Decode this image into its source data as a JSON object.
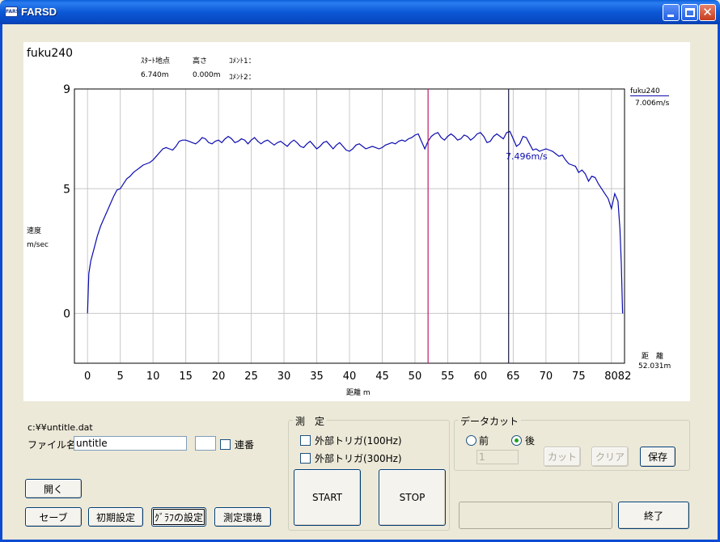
{
  "window": {
    "title": "FARSD",
    "icon_name": "farsd-app-icon",
    "icon_text": "FARSD"
  },
  "graph": {
    "title": "fuku240",
    "info": {
      "start_label": "ｽﾀｰﾄ地点",
      "start_value": "6.740m",
      "height_label": "高さ",
      "height_value": "0.000m",
      "comment1_label": "ｺﾒﾝﾄ1：",
      "comment2_label": "ｺﾒﾝﾄ2："
    },
    "ylabel": "速度",
    "yunit": "m/sec",
    "xlabel": "距離 m",
    "legend": {
      "series": "fuku240",
      "value": "7.006m/s"
    },
    "cursor_readout": "7.496m/s",
    "distance_label": "距　離",
    "distance_value": "52.031m"
  },
  "chart_data": {
    "type": "line",
    "xlim": [
      -2,
      82
    ],
    "ylim": [
      -2,
      9
    ],
    "yticks": [
      {
        "value": 9,
        "label": "9"
      },
      {
        "value": 5,
        "label": "5"
      },
      {
        "value": 0,
        "label": "0"
      }
    ],
    "xticks": [
      {
        "value": 0,
        "label": "0"
      },
      {
        "value": 5,
        "label": "5"
      },
      {
        "value": 10,
        "label": "10"
      },
      {
        "value": 15,
        "label": "15"
      },
      {
        "value": 20,
        "label": "20"
      },
      {
        "value": 25,
        "label": "25"
      },
      {
        "value": 30,
        "label": "30"
      },
      {
        "value": 35,
        "label": "35"
      },
      {
        "value": 40,
        "label": "40"
      },
      {
        "value": 45,
        "label": "45"
      },
      {
        "value": 50,
        "label": "50"
      },
      {
        "value": 55,
        "label": "55"
      },
      {
        "value": 60,
        "label": "60"
      },
      {
        "value": 65,
        "label": "65"
      },
      {
        "value": 70,
        "label": "70"
      },
      {
        "value": 75,
        "label": "75"
      },
      {
        "value": 80,
        "label": "80"
      },
      {
        "value": 82,
        "label": "82"
      }
    ],
    "grid": true,
    "markers": [
      {
        "x": 52.0,
        "color": "#c0186c"
      },
      {
        "x": 64.3,
        "color": "#1a1a40"
      }
    ],
    "series": [
      {
        "name": "fuku240",
        "color": "#0b0bb0",
        "points": [
          [
            0.0,
            0.0
          ],
          [
            0.2,
            1.6
          ],
          [
            0.5,
            2.1
          ],
          [
            1.0,
            2.6
          ],
          [
            1.5,
            3.1
          ],
          [
            2.0,
            3.5
          ],
          [
            2.5,
            3.8
          ],
          [
            3.0,
            4.1
          ],
          [
            3.5,
            4.4
          ],
          [
            4.0,
            4.7
          ],
          [
            4.5,
            4.95
          ],
          [
            5.0,
            5.0
          ],
          [
            5.5,
            5.2
          ],
          [
            6.0,
            5.4
          ],
          [
            6.5,
            5.5
          ],
          [
            7.0,
            5.65
          ],
          [
            7.5,
            5.75
          ],
          [
            8.0,
            5.85
          ],
          [
            8.5,
            5.95
          ],
          [
            9.0,
            6.0
          ],
          [
            9.5,
            6.05
          ],
          [
            10.0,
            6.15
          ],
          [
            10.5,
            6.3
          ],
          [
            11.0,
            6.45
          ],
          [
            11.5,
            6.6
          ],
          [
            12.0,
            6.65
          ],
          [
            12.5,
            6.6
          ],
          [
            13.0,
            6.55
          ],
          [
            13.5,
            6.7
          ],
          [
            14.0,
            6.9
          ],
          [
            14.5,
            6.95
          ],
          [
            15.0,
            6.95
          ],
          [
            15.5,
            6.9
          ],
          [
            16.0,
            6.85
          ],
          [
            16.5,
            6.8
          ],
          [
            17.0,
            6.9
          ],
          [
            17.5,
            7.05
          ],
          [
            18.0,
            7.0
          ],
          [
            18.5,
            6.85
          ],
          [
            19.0,
            6.8
          ],
          [
            19.5,
            6.9
          ],
          [
            20.0,
            6.95
          ],
          [
            20.5,
            6.85
          ],
          [
            21.0,
            7.0
          ],
          [
            21.5,
            7.1
          ],
          [
            22.0,
            7.0
          ],
          [
            22.5,
            6.85
          ],
          [
            23.0,
            6.9
          ],
          [
            23.5,
            7.0
          ],
          [
            24.0,
            6.95
          ],
          [
            24.5,
            6.8
          ],
          [
            25.0,
            6.95
          ],
          [
            25.5,
            7.05
          ],
          [
            26.0,
            6.9
          ],
          [
            26.5,
            6.8
          ],
          [
            27.0,
            6.9
          ],
          [
            27.5,
            6.95
          ],
          [
            28.0,
            6.85
          ],
          [
            28.5,
            6.75
          ],
          [
            29.0,
            6.85
          ],
          [
            29.5,
            6.9
          ],
          [
            30.0,
            6.8
          ],
          [
            30.5,
            6.7
          ],
          [
            31.0,
            6.85
          ],
          [
            31.5,
            6.95
          ],
          [
            32.0,
            6.85
          ],
          [
            32.5,
            6.7
          ],
          [
            33.0,
            6.65
          ],
          [
            33.5,
            6.8
          ],
          [
            34.0,
            6.9
          ],
          [
            34.5,
            6.75
          ],
          [
            35.0,
            6.6
          ],
          [
            35.5,
            6.7
          ],
          [
            36.0,
            6.85
          ],
          [
            36.5,
            6.9
          ],
          [
            37.0,
            6.75
          ],
          [
            37.5,
            6.6
          ],
          [
            38.0,
            6.75
          ],
          [
            38.5,
            6.85
          ],
          [
            39.0,
            6.7
          ],
          [
            39.5,
            6.55
          ],
          [
            40.0,
            6.5
          ],
          [
            40.5,
            6.6
          ],
          [
            41.0,
            6.75
          ],
          [
            41.5,
            6.8
          ],
          [
            42.0,
            6.7
          ],
          [
            42.5,
            6.6
          ],
          [
            43.0,
            6.65
          ],
          [
            43.5,
            6.7
          ],
          [
            44.0,
            6.65
          ],
          [
            44.5,
            6.6
          ],
          [
            45.0,
            6.65
          ],
          [
            45.5,
            6.75
          ],
          [
            46.0,
            6.8
          ],
          [
            46.5,
            6.85
          ],
          [
            47.0,
            6.8
          ],
          [
            47.5,
            6.9
          ],
          [
            48.0,
            6.95
          ],
          [
            48.5,
            6.9
          ],
          [
            49.0,
            7.0
          ],
          [
            49.5,
            7.05
          ],
          [
            50.0,
            7.15
          ],
          [
            50.5,
            7.2
          ],
          [
            51.0,
            6.9
          ],
          [
            51.5,
            6.6
          ],
          [
            52.0,
            6.9
          ],
          [
            52.5,
            7.1
          ],
          [
            53.0,
            7.2
          ],
          [
            53.5,
            7.25
          ],
          [
            54.0,
            7.05
          ],
          [
            54.5,
            6.95
          ],
          [
            55.0,
            7.1
          ],
          [
            55.5,
            7.2
          ],
          [
            56.0,
            7.1
          ],
          [
            56.5,
            6.95
          ],
          [
            57.0,
            7.0
          ],
          [
            57.5,
            7.15
          ],
          [
            58.0,
            7.1
          ],
          [
            58.5,
            6.95
          ],
          [
            59.0,
            7.05
          ],
          [
            59.5,
            7.2
          ],
          [
            60.0,
            7.25
          ],
          [
            60.5,
            7.1
          ],
          [
            61.0,
            6.85
          ],
          [
            61.5,
            6.9
          ],
          [
            62.0,
            7.1
          ],
          [
            62.5,
            7.2
          ],
          [
            63.0,
            7.1
          ],
          [
            63.5,
            7.0
          ],
          [
            64.0,
            7.25
          ],
          [
            64.5,
            7.3
          ],
          [
            65.0,
            7.0
          ],
          [
            65.5,
            6.7
          ],
          [
            66.0,
            6.8
          ],
          [
            66.5,
            7.1
          ],
          [
            67.0,
            7.05
          ],
          [
            67.5,
            6.8
          ],
          [
            68.0,
            6.55
          ],
          [
            68.5,
            6.6
          ],
          [
            69.0,
            6.5
          ],
          [
            69.5,
            6.55
          ],
          [
            70.0,
            6.6
          ],
          [
            70.5,
            6.55
          ],
          [
            71.0,
            6.5
          ],
          [
            71.5,
            6.4
          ],
          [
            72.0,
            6.3
          ],
          [
            72.5,
            6.35
          ],
          [
            73.0,
            6.15
          ],
          [
            73.5,
            6.0
          ],
          [
            74.0,
            5.95
          ],
          [
            74.5,
            5.9
          ],
          [
            75.0,
            5.65
          ],
          [
            75.5,
            5.75
          ],
          [
            76.0,
            5.6
          ],
          [
            76.5,
            5.3
          ],
          [
            77.0,
            5.5
          ],
          [
            77.5,
            5.45
          ],
          [
            78.0,
            5.2
          ],
          [
            78.5,
            5.0
          ],
          [
            79.0,
            4.8
          ],
          [
            79.5,
            4.6
          ],
          [
            80.0,
            4.2
          ],
          [
            80.5,
            4.8
          ],
          [
            81.0,
            4.5
          ],
          [
            81.3,
            3.4
          ],
          [
            81.5,
            2.0
          ],
          [
            81.7,
            0.0
          ]
        ]
      }
    ]
  },
  "file": {
    "path": "c:¥¥untitle.dat",
    "name_label": "ファイル名：",
    "name_value": "untitle",
    "serial_value": "",
    "serial_label": "連番"
  },
  "buttons": {
    "open": "開く",
    "save": "セーブ",
    "init_settings": "初期設定",
    "graph_settings": "ｸﾞﾗﾌの設定",
    "measure_env": "測定環境",
    "start": "START",
    "stop": "STOP",
    "exit": "終了"
  },
  "measure": {
    "title": "測　定",
    "trigger100": "外部トリガ(100Hz)",
    "trigger300": "外部トリガ(300Hz)"
  },
  "datacut": {
    "title": "データカット",
    "before_label": "前",
    "after_label": "後",
    "selected": "後",
    "value": "1",
    "cut": "カット",
    "clear": "クリア",
    "save": "保存"
  },
  "status": {
    "text": ""
  }
}
